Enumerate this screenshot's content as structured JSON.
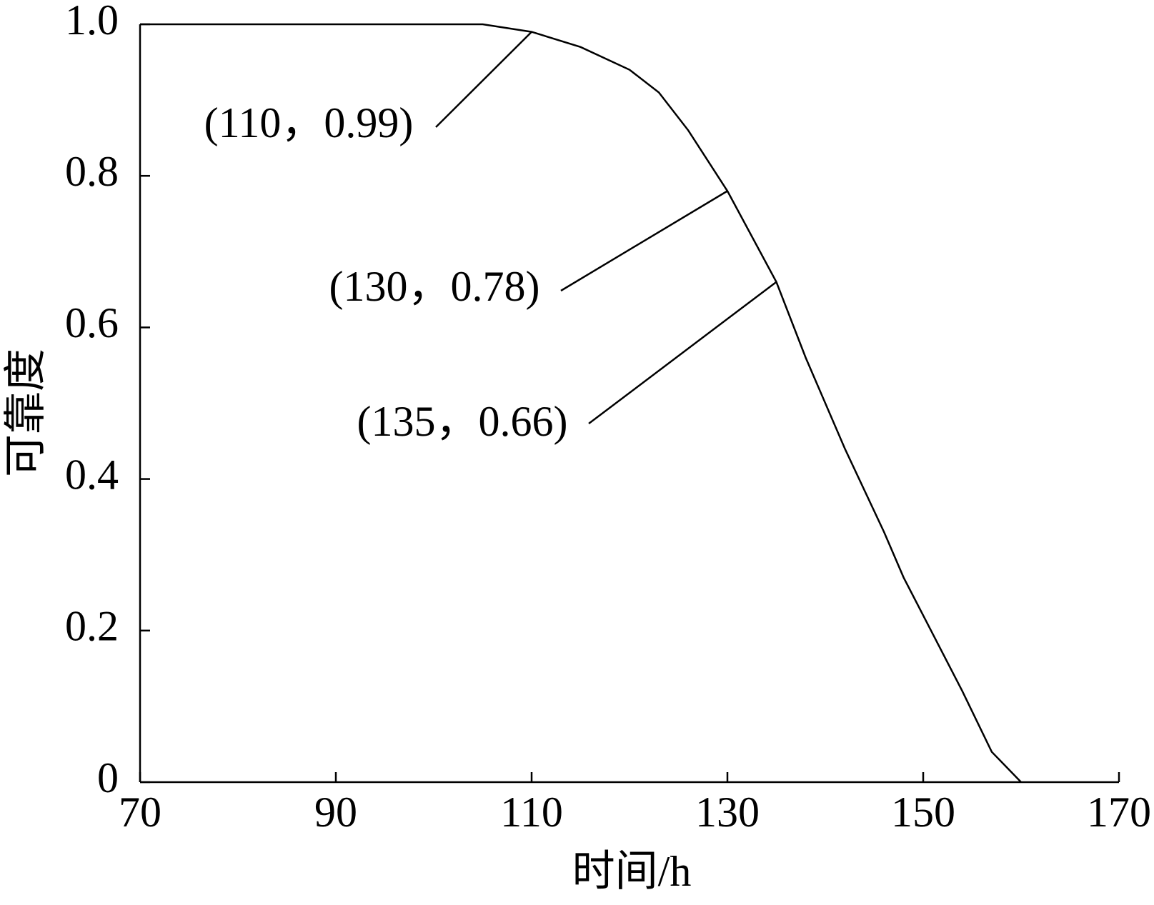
{
  "chart_data": {
    "type": "line",
    "x_label": "时间/h",
    "y_label": "可靠度",
    "series": [
      {
        "color": "#000000",
        "x": [
          70,
          105,
          110,
          115,
          120,
          123,
          126,
          130,
          135,
          138,
          142,
          146,
          148,
          150,
          154,
          157,
          160
        ],
        "values": [
          1,
          1,
          0.99,
          0.97,
          0.94,
          0.91,
          0.86,
          0.78,
          0.66,
          0.56,
          0.44,
          0.33,
          0.27,
          0.22,
          0.12,
          0.04,
          0
        ]
      }
    ],
    "xlim": [
      70,
      170
    ],
    "xticks": [
      70,
      90,
      110,
      130,
      150,
      170
    ],
    "ylim": [
      0,
      1.0
    ],
    "yticks": [
      0,
      0.2,
      0.4,
      0.6,
      0.8,
      {
        "value": 1.0,
        "label": "1.0"
      }
    ],
    "annotations": [
      {
        "text": "(110，0.99)",
        "x": 110,
        "y": 0.99
      },
      {
        "text": "(130，0.78)",
        "x": 130,
        "y": 0.78
      },
      {
        "text": "(135，0.66)",
        "x": 135,
        "y": 0.66
      }
    ]
  }
}
